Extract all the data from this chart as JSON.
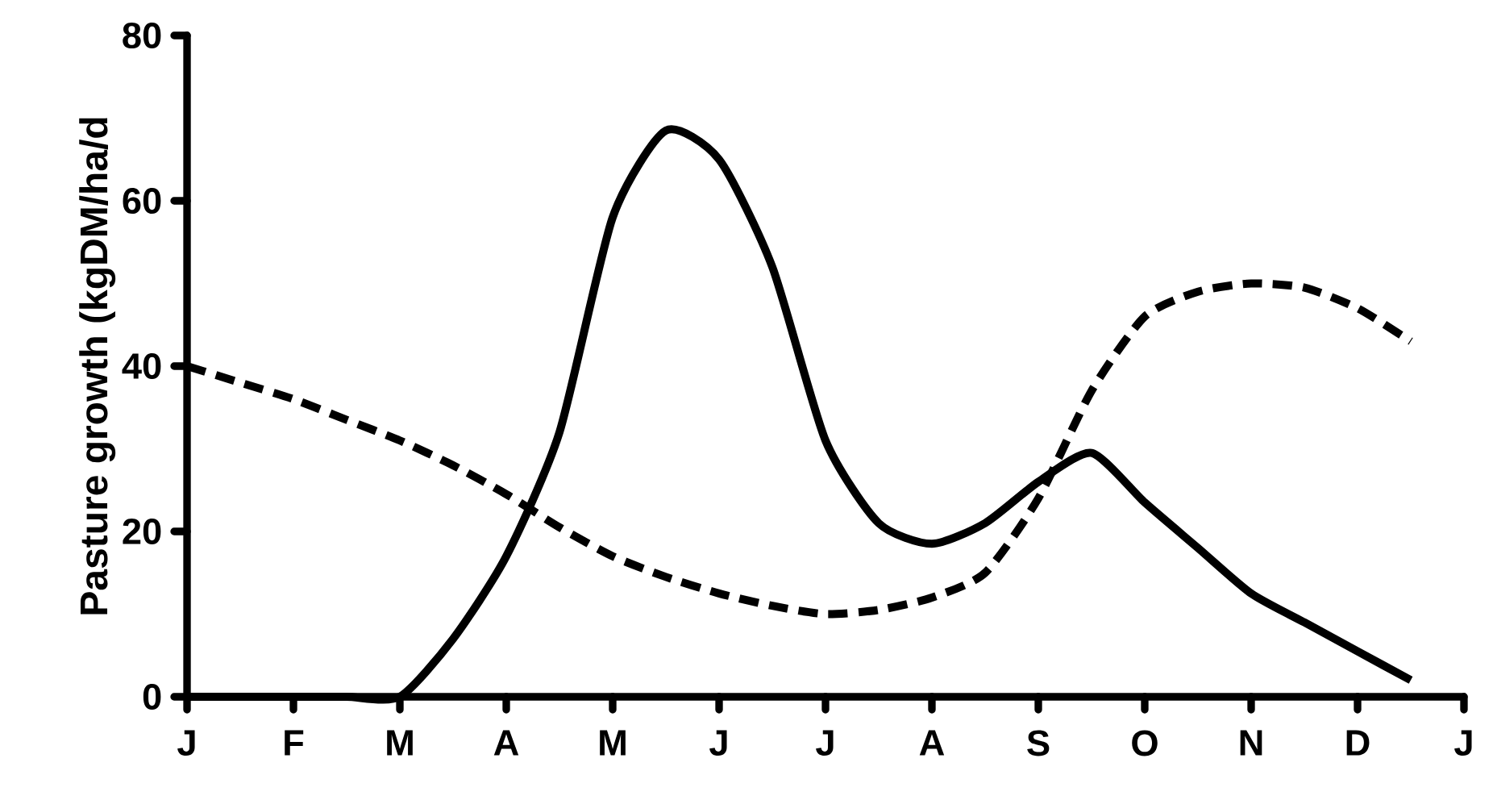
{
  "chart_data": {
    "type": "line",
    "ylabel": "Pasture growth (kgDM/ha/d",
    "categories": [
      "J",
      null,
      "F",
      null,
      "M",
      null,
      "A",
      null,
      "M",
      null,
      "J",
      null,
      "J",
      null,
      "A",
      null,
      "S",
      null,
      "O",
      null,
      "N",
      null,
      "D",
      null,
      "J"
    ],
    "ylim": [
      0,
      80
    ],
    "yticks": [
      0,
      20,
      40,
      60,
      80
    ],
    "grid": false,
    "marker": "none",
    "series": [
      {
        "color": "#000000",
        "line_style": "solid",
        "values": [
          0,
          0,
          0,
          0,
          0,
          7,
          17,
          32,
          58,
          68.5,
          65,
          52,
          31,
          21,
          18.5,
          21,
          26,
          29.5,
          23.5,
          18,
          12.5,
          9,
          5.5,
          2,
          null
        ]
      },
      {
        "color": "#000000",
        "line_style": "dashed",
        "values": [
          40,
          38,
          36,
          33.5,
          31,
          28,
          24.5,
          20.5,
          17,
          14.5,
          12.5,
          11,
          10,
          10.5,
          12,
          15,
          24,
          37,
          46,
          49,
          50,
          49.5,
          47,
          43,
          null
        ]
      }
    ]
  }
}
